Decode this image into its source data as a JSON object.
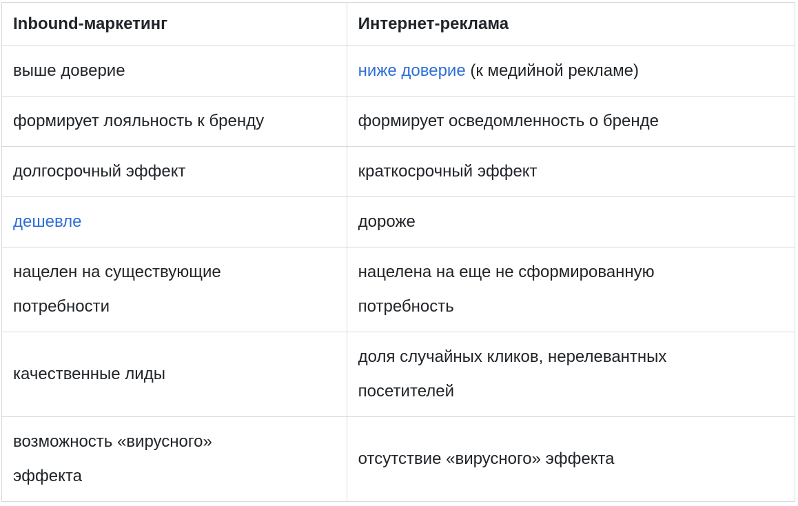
{
  "table": {
    "headers": [
      "Inbound-маркетинг",
      "Интернет-реклама"
    ],
    "rows": [
      {
        "cells": [
          [
            {
              "type": "text",
              "text": "выше доверие"
            }
          ],
          [
            {
              "type": "link",
              "text": "ниже доверие"
            },
            {
              "type": "text",
              "text": " (к медийной рекламе)"
            }
          ]
        ]
      },
      {
        "cells": [
          [
            {
              "type": "text",
              "text": "формирует лояльность к бренду"
            }
          ],
          [
            {
              "type": "text",
              "text": "формирует осведомленность о бренде"
            }
          ]
        ]
      },
      {
        "cells": [
          [
            {
              "type": "text",
              "text": "долгосрочный эффект"
            }
          ],
          [
            {
              "type": "text",
              "text": "краткосрочный эффект"
            }
          ]
        ]
      },
      {
        "cells": [
          [
            {
              "type": "link",
              "text": "дешевле"
            }
          ],
          [
            {
              "type": "text",
              "text": "дороже"
            }
          ]
        ]
      },
      {
        "cells": [
          [
            {
              "type": "text",
              "text": "нацелен на существующие\nпотребности"
            }
          ],
          [
            {
              "type": "text",
              "text": "нацелена на еще не сформированную\nпотребность"
            }
          ]
        ]
      },
      {
        "cells": [
          [
            {
              "type": "text",
              "text": "качественные лиды"
            }
          ],
          [
            {
              "type": "text",
              "text": "доля случайных кликов, нерелевантных\nпосетителей"
            }
          ]
        ]
      },
      {
        "cells": [
          [
            {
              "type": "text",
              "text": "возможность «вирусного»\nэффекта"
            }
          ],
          [
            {
              "type": "text",
              "text": "отсутствие «вирусного» эффекта"
            }
          ]
        ]
      }
    ]
  },
  "colors": {
    "link": "#2d6ed7",
    "text": "#212529",
    "border": "#d9d9da",
    "background": "#ffffff"
  }
}
